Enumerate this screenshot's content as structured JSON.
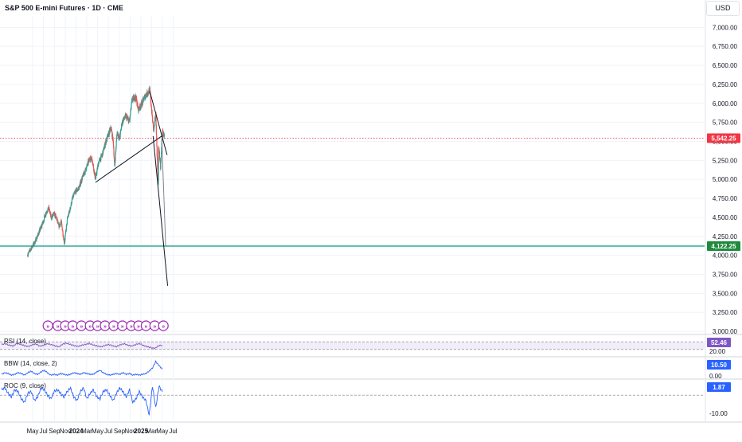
{
  "header": {
    "title": "S&P 500 E-mini Futures · 1D · CME",
    "currency": "USD"
  },
  "colors": {
    "up": "#26a69a",
    "down": "#ef5350",
    "support": "#089981",
    "support_label": "#1e8a3c",
    "current_label": "#f23645",
    "indicator_line": "#2962ff",
    "rsi_line": "#7e57c2",
    "event_marker": "#9c27b0",
    "trendline": "#131722",
    "projection": "#787b86"
  },
  "chart_data": {
    "type": "line",
    "title": "S&P 500 E-mini Futures · 1D · CME",
    "xlabel": "",
    "ylabel": "",
    "x_ticks": [
      "May",
      "Jul",
      "Sep",
      "Nov",
      "2024",
      "Mar",
      "May",
      "Jul",
      "Sep",
      "Nov",
      "2025",
      "Mar",
      "May",
      "Jul"
    ],
    "x_tick_dates": [
      "2023-05-01",
      "2023-07-01",
      "2023-09-01",
      "2023-11-01",
      "2024-01-01",
      "2024-03-01",
      "2024-05-01",
      "2024-07-01",
      "2024-09-01",
      "2024-11-01",
      "2025-01-01",
      "2025-03-01",
      "2025-05-01",
      "2025-07-01"
    ],
    "y_ticks": [
      3000,
      3250,
      3500,
      3750,
      4000,
      4250,
      4500,
      4750,
      5000,
      5250,
      5500,
      5750,
      6000,
      6250,
      6500,
      6750,
      7000
    ],
    "y_tick_labels": [
      "3,000.00",
      "3,250.00",
      "3,500.00",
      "3,750.00",
      "4,000.00",
      "4,250.00",
      "4,500.00",
      "4,750.00",
      "5,000.00",
      "5,250.00",
      "5,500.00",
      "5,750.00",
      "6,000.00",
      "6,250.00",
      "6,500.00",
      "6,750.00",
      "7,000.00"
    ],
    "ylim": [
      2980,
      7150
    ],
    "price_series": {
      "x": [
        "2023-04-03",
        "2023-04-24",
        "2023-05-15",
        "2023-06-05",
        "2023-06-26",
        "2023-07-17",
        "2023-07-31",
        "2023-08-14",
        "2023-08-28",
        "2023-09-11",
        "2023-09-25",
        "2023-10-09",
        "2023-10-27",
        "2023-11-13",
        "2023-11-27",
        "2023-12-11",
        "2023-12-28",
        "2024-01-15",
        "2024-02-05",
        "2024-02-26",
        "2024-03-18",
        "2024-04-01",
        "2024-04-19",
        "2024-05-06",
        "2024-05-27",
        "2024-06-17",
        "2024-07-08",
        "2024-07-16",
        "2024-07-29",
        "2024-08-05",
        "2024-08-19",
        "2024-09-02",
        "2024-09-16",
        "2024-10-07",
        "2024-10-28",
        "2024-11-11",
        "2024-12-02",
        "2024-12-16",
        "2025-01-06",
        "2025-01-27",
        "2025-02-19",
        "2025-03-03",
        "2025-03-13",
        "2025-03-25",
        "2025-04-04",
        "2025-04-08",
        "2025-04-10",
        "2025-04-21",
        "2025-05-01",
        "2025-05-13"
      ],
      "close": [
        4010,
        4100,
        4180,
        4300,
        4420,
        4570,
        4620,
        4490,
        4550,
        4500,
        4380,
        4440,
        4160,
        4480,
        4600,
        4750,
        4840,
        4880,
        5020,
        5140,
        5280,
        5260,
        5000,
        5220,
        5320,
        5500,
        5630,
        5680,
        5480,
        5150,
        5630,
        5530,
        5750,
        5830,
        5760,
        6040,
        6090,
        5920,
        6000,
        6110,
        6170,
        5880,
        5630,
        5860,
        5150,
        4850,
        5450,
        5150,
        5620,
        5570
      ]
    },
    "levels": [
      {
        "value": 5542.25,
        "label": "5,542.25",
        "style": "dotted"
      },
      {
        "value": 4122.25,
        "label": "4,122.25",
        "style": "solid"
      }
    ],
    "trendlines": [
      {
        "from": [
          "2024-04-19",
          4960
        ],
        "to": [
          "2025-04-28",
          5570
        ]
      },
      {
        "from": [
          "2025-02-19",
          6160
        ],
        "to": [
          "2025-05-28",
          5320
        ]
      },
      {
        "from": [
          "2025-03-10",
          5570
        ],
        "to": [
          "2025-05-31",
          3600
        ]
      },
      {
        "from": [
          "2025-04-28",
          5550
        ],
        "to": [
          "2025-05-20",
          4120
        ],
        "style": "projection"
      }
    ],
    "event_markers": [
      "2023-07-26",
      "2023-09-20",
      "2023-11-01",
      "2023-12-13",
      "2024-01-31",
      "2024-03-20",
      "2024-05-01",
      "2024-06-12",
      "2024-07-31",
      "2024-09-18",
      "2024-11-07",
      "2024-12-18",
      "2025-01-29",
      "2025-03-19",
      "2025-05-07"
    ],
    "indicators": [
      {
        "name": "RSI (14, close)",
        "value_label": "52.46",
        "ticks": [
          {
            "value": 20,
            "label": "20.00"
          }
        ],
        "ylim": [
          0,
          100
        ],
        "values": [
          56,
          60,
          52,
          48,
          62,
          57,
          50,
          45,
          55,
          58,
          47,
          52,
          60,
          55,
          49,
          44,
          58,
          63,
          56,
          50,
          46,
          52,
          57,
          61,
          53,
          48,
          44,
          51,
          56,
          49,
          45,
          54,
          60,
          52,
          48,
          55,
          62,
          51,
          45,
          40,
          35,
          50,
          52
        ]
      },
      {
        "name": "BBW (14, close, 2)",
        "value_label": "10.50",
        "ticks": [
          {
            "value": 0,
            "label": "0.00"
          }
        ],
        "ylim": [
          0,
          24
        ],
        "values": [
          4,
          6,
          5,
          3,
          4,
          6,
          5,
          3,
          6,
          8,
          5,
          4,
          7,
          9,
          6,
          3,
          4,
          3,
          5,
          4,
          3,
          4,
          6,
          5,
          4,
          6,
          5,
          4,
          4,
          7,
          9,
          6,
          4,
          3,
          4,
          5,
          4,
          6,
          4,
          5,
          3,
          4,
          3,
          4,
          5,
          8,
          12,
          20,
          15,
          10.5
        ]
      },
      {
        "name": "ROC (9, close)",
        "value_label": "1.87",
        "ticks": [
          {
            "value": -10,
            "label": "-10.00"
          }
        ],
        "ylim": [
          -14,
          8
        ],
        "values": [
          3,
          4,
          1,
          -1,
          3,
          2,
          -2,
          -4,
          1,
          2,
          -3,
          -1,
          4,
          3,
          0,
          -2,
          2,
          3,
          1,
          -1,
          2,
          4,
          -1,
          -3,
          2,
          4,
          -2,
          1,
          3,
          -1,
          -2,
          2,
          3,
          0,
          -3,
          1,
          4,
          2,
          -1,
          3,
          -4,
          -2,
          2,
          -1,
          -3,
          -11,
          5,
          -7,
          5,
          1.87
        ]
      }
    ]
  }
}
